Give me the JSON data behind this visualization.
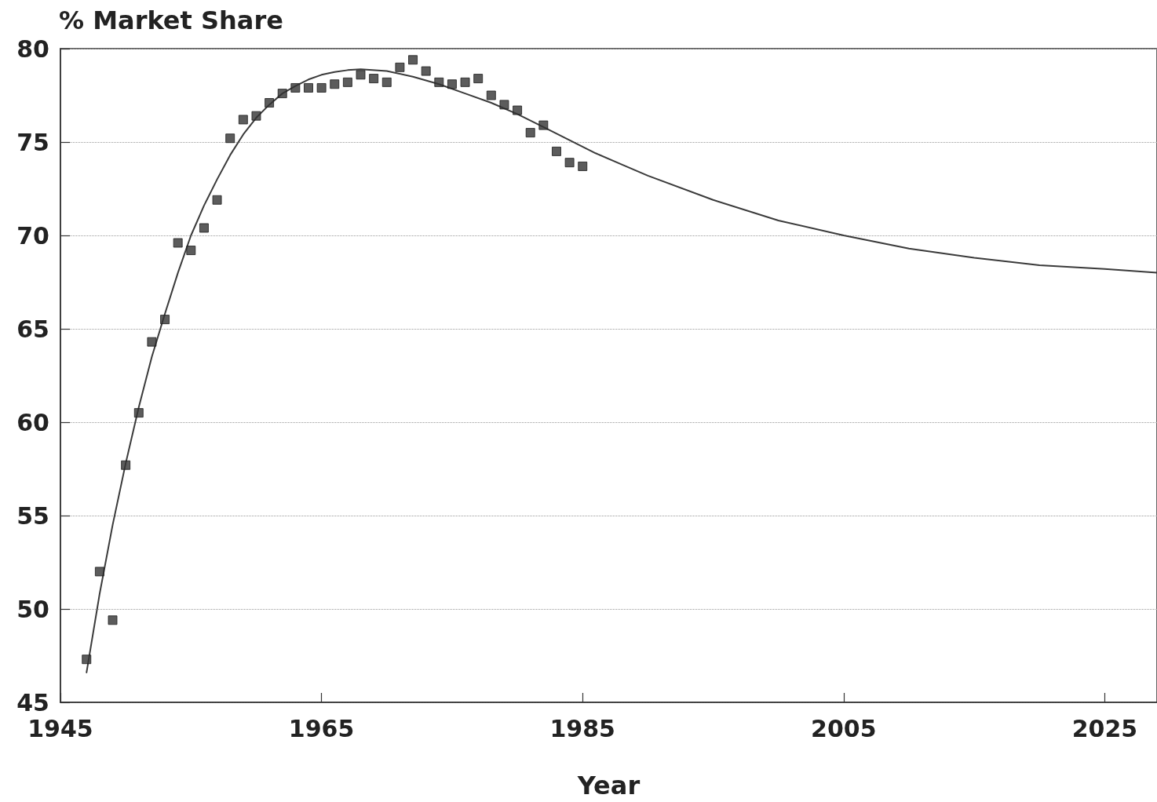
{
  "chart_data": {
    "type": "scatter",
    "xlabel": "Year",
    "ylabel": "% Market Share",
    "xlim": [
      1945,
      2029
    ],
    "xticks": [
      1945,
      1965,
      1985,
      2005,
      2025
    ],
    "ylim": [
      45,
      80
    ],
    "yticks": [
      45,
      50,
      55,
      60,
      65,
      70,
      75,
      80
    ],
    "grid": "y",
    "marker": "square",
    "x": [
      1947,
      1948,
      1949,
      1950,
      1951,
      1952,
      1953,
      1954,
      1955,
      1956,
      1957,
      1958,
      1959,
      1960,
      1961,
      1962,
      1963,
      1964,
      1965,
      1966,
      1967,
      1968,
      1969,
      1970,
      1971,
      1972,
      1973,
      1974,
      1975,
      1976,
      1977,
      1978,
      1979,
      1980,
      1981,
      1982,
      1983,
      1984,
      1985
    ],
    "series": [
      {
        "color": "#333333",
        "values": [
          47.3,
          52.0,
          49.4,
          57.7,
          60.5,
          64.3,
          65.5,
          69.6,
          69.2,
          70.4,
          71.9,
          75.2,
          76.2,
          76.4,
          77.1,
          77.6,
          77.9,
          77.9,
          77.9,
          78.1,
          78.2,
          78.6,
          78.4,
          78.2,
          79.0,
          79.4,
          78.8,
          78.2,
          78.1,
          78.2,
          78.4,
          77.5,
          77.0,
          76.7,
          75.5,
          75.9,
          74.5,
          73.9,
          73.7
        ]
      },
      {
        "type": "line",
        "color": "#3a3a3a",
        "marker": "none",
        "x": [
          1947,
          1948,
          1949,
          1950,
          1951,
          1952,
          1953,
          1954,
          1955,
          1956,
          1957,
          1958,
          1959,
          1960,
          1961,
          1962,
          1963,
          1964,
          1965,
          1966,
          1967,
          1968,
          1970,
          1972,
          1974,
          1976,
          1978,
          1980,
          1982,
          1984,
          1986,
          1988,
          1990,
          1995,
          2000,
          2005,
          2010,
          2015,
          2020,
          2025,
          2029
        ],
        "values": [
          46.6,
          50.8,
          54.5,
          57.8,
          60.8,
          63.5,
          65.8,
          68.0,
          70.0,
          71.6,
          73.0,
          74.3,
          75.4,
          76.3,
          77.0,
          77.6,
          78.0,
          78.35,
          78.6,
          78.75,
          78.85,
          78.9,
          78.8,
          78.5,
          78.1,
          77.6,
          77.1,
          76.5,
          75.8,
          75.1,
          74.4,
          73.8,
          73.2,
          71.9,
          70.8,
          70.0,
          69.3,
          68.8,
          68.4,
          68.2,
          68.0
        ]
      }
    ]
  }
}
